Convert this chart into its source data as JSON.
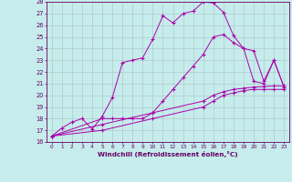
{
  "xlabel": "Windchill (Refroidissement éolien,°C)",
  "xlim": [
    -0.5,
    23.5
  ],
  "ylim": [
    16,
    28
  ],
  "xticks": [
    0,
    1,
    2,
    3,
    4,
    5,
    6,
    7,
    8,
    9,
    10,
    11,
    12,
    13,
    14,
    15,
    16,
    17,
    18,
    19,
    20,
    21,
    22,
    23
  ],
  "yticks": [
    16,
    17,
    18,
    19,
    20,
    21,
    22,
    23,
    24,
    25,
    26,
    27,
    28
  ],
  "bg_color": "#c6ecec",
  "grid_color": "#b0cccc",
  "line_color": "#aa00aa",
  "line1_x": [
    0,
    1,
    2,
    3,
    4,
    5,
    6,
    7,
    8,
    9,
    10,
    11,
    12,
    13,
    14,
    15,
    16,
    17,
    18,
    19,
    20,
    21,
    22,
    23
  ],
  "line1_y": [
    16.5,
    17.2,
    17.7,
    18.0,
    17.1,
    18.2,
    19.8,
    22.8,
    23.0,
    23.2,
    24.8,
    26.8,
    26.2,
    27.0,
    27.2,
    28.0,
    27.9,
    27.1,
    25.1,
    24.0,
    21.2,
    21.0,
    23.0,
    20.7
  ],
  "line2_x": [
    0,
    5,
    6,
    7,
    8,
    9,
    10,
    11,
    12,
    13,
    14,
    15,
    16,
    17,
    18,
    19,
    20,
    21,
    22,
    23
  ],
  "line2_y": [
    16.5,
    18.0,
    18.0,
    18.0,
    18.0,
    18.0,
    18.5,
    19.5,
    20.5,
    21.5,
    22.5,
    23.5,
    25.0,
    25.2,
    24.5,
    24.0,
    23.8,
    21.2,
    23.0,
    20.7
  ],
  "line3_x": [
    0,
    5,
    10,
    15,
    16,
    17,
    18,
    19,
    20,
    21,
    22,
    23
  ],
  "line3_y": [
    16.5,
    17.5,
    18.5,
    19.5,
    20.0,
    20.3,
    20.5,
    20.6,
    20.7,
    20.75,
    20.8,
    20.8
  ],
  "line4_x": [
    0,
    5,
    10,
    15,
    16,
    17,
    18,
    19,
    20,
    21,
    22,
    23
  ],
  "line4_y": [
    16.5,
    17.0,
    18.0,
    19.0,
    19.5,
    20.0,
    20.2,
    20.4,
    20.5,
    20.5,
    20.5,
    20.5
  ]
}
